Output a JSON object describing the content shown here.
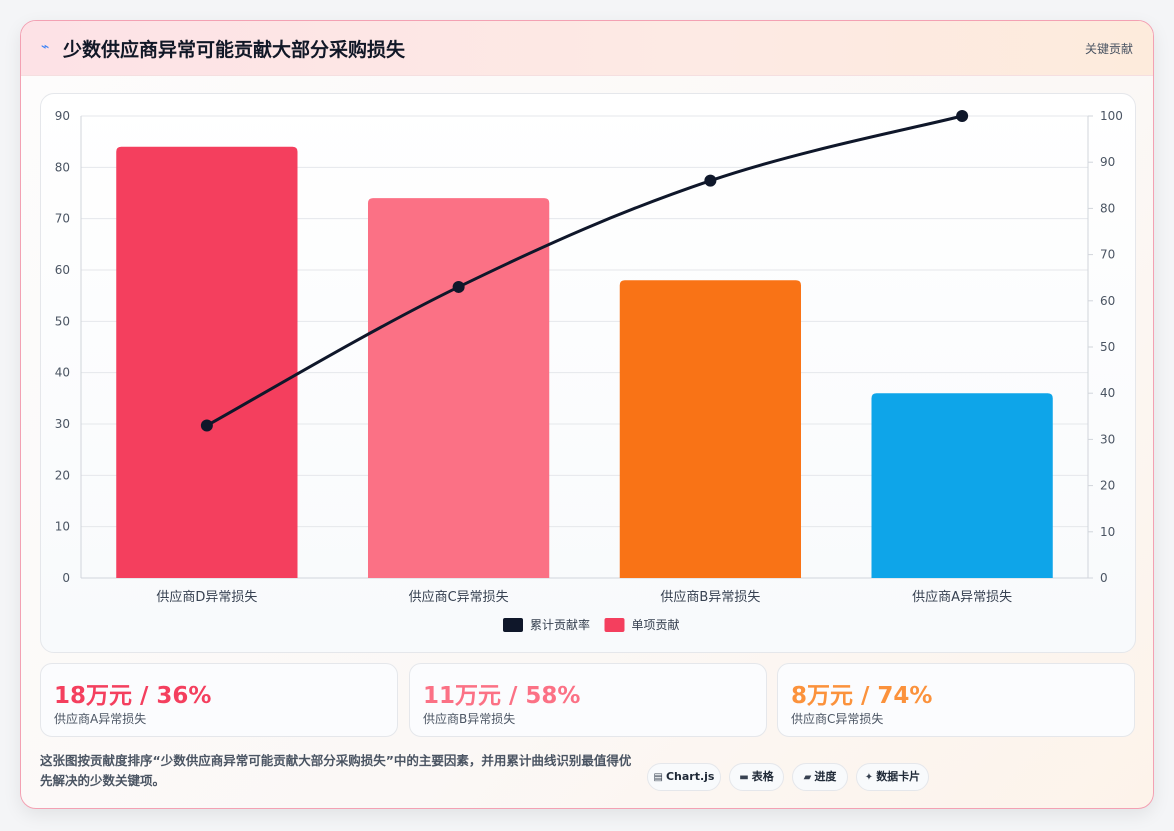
{
  "header": {
    "icon": "bolt-icon",
    "title": "少数供应商异常可能贡献大部分采购损失",
    "tag": "关键贡献"
  },
  "chart_data": {
    "type": "bar",
    "categories": [
      "供应商D异常损失",
      "供应商C异常损失",
      "供应商B异常损失",
      "供应商A异常损失"
    ],
    "series": [
      {
        "name": "单项贡献",
        "type": "bar",
        "axis": "left",
        "values": [
          84,
          74,
          58,
          36
        ],
        "colors": [
          "#f43f5e",
          "#fb7185",
          "#f97316",
          "#0ea5e9"
        ],
        "legend_color": "#f43f5e"
      },
      {
        "name": "累计贡献率",
        "type": "line",
        "axis": "right",
        "values": [
          33,
          63,
          86,
          100
        ],
        "color": "#0f172a"
      }
    ],
    "y_left": {
      "min": 0,
      "max": 90,
      "step": 10
    },
    "y_right": {
      "min": 0,
      "max": 100,
      "step": 10
    },
    "grid": true,
    "legend_position": "bottom"
  },
  "stats": [
    {
      "value": "18万元 / 36%",
      "label": "供应商A异常损失",
      "color": "#f43f5e"
    },
    {
      "value": "11万元 / 58%",
      "label": "供应商B异常损失",
      "color": "#fb7185"
    },
    {
      "value": "8万元 / 74%",
      "label": "供应商C异常损失",
      "color": "#fb923c"
    }
  ],
  "footer": {
    "description": "这张图按贡献度排序“少数供应商异常可能贡献大部分采购损失”中的主要因素，并用累计曲线识别最值得优先解决的少数关键项。",
    "chips": [
      {
        "icon": "chart-icon",
        "label": "Chart.js"
      },
      {
        "icon": "table-icon",
        "label": "表格"
      },
      {
        "icon": "progress-icon",
        "label": "进度"
      },
      {
        "icon": "sparkle-icon",
        "label": "数据卡片"
      }
    ]
  }
}
